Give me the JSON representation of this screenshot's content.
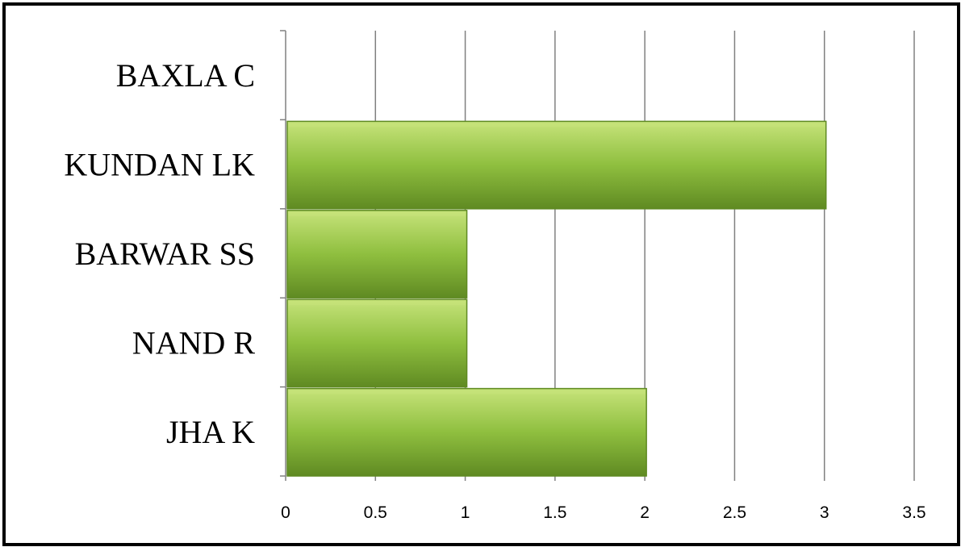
{
  "chart_data": {
    "type": "bar",
    "orientation": "horizontal",
    "title": "",
    "xlabel": "",
    "ylabel": "",
    "categories": [
      "JHA K",
      "NAND R",
      "BARWAR SS",
      "KUNDAN LK",
      "BAXLA C"
    ],
    "values": [
      2,
      1,
      1,
      3,
      0
    ],
    "xlim": [
      0,
      3.5
    ],
    "xticks": [
      0,
      0.5,
      1,
      1.5,
      2,
      2.5,
      3,
      3.5
    ],
    "xtick_labels": [
      "0",
      "0.5",
      "1",
      "1.5",
      "2",
      "2.5",
      "3",
      "3.5"
    ],
    "grid": "vertical",
    "legend": "none",
    "bar_color": "#8fbf3f",
    "bar_highlight_color": "#c6e37a",
    "bar_shadow_color": "#5f8a22",
    "gridline_color": "#808080",
    "frame_color": "#000000"
  }
}
